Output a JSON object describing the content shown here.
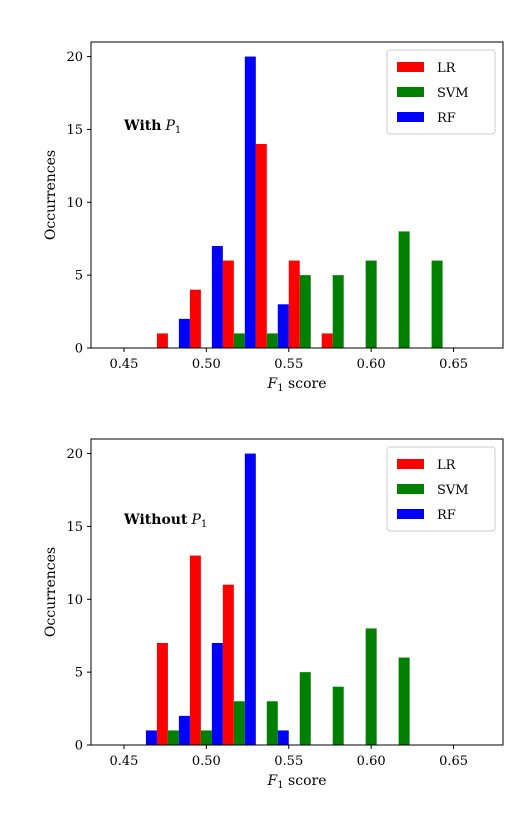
{
  "chart_data": [
    {
      "type": "bar",
      "annotation": "With",
      "annotation_math": "P",
      "annotation_sub": "1",
      "xlabel_math": "F",
      "xlabel_sub": "1",
      "xlabel_rest": "score",
      "ylabel": "Occurrences",
      "xlim": [
        0.43,
        0.68
      ],
      "ylim": [
        0,
        21
      ],
      "xticks": [
        {
          "value": 0.45,
          "label": "0.45"
        },
        {
          "value": 0.5,
          "label": "0.50"
        },
        {
          "value": 0.55,
          "label": "0.55"
        },
        {
          "value": 0.6,
          "label": "0.60"
        },
        {
          "value": 0.65,
          "label": "0.65"
        }
      ],
      "yticks": [
        {
          "value": 0,
          "label": "0"
        },
        {
          "value": 5,
          "label": "5"
        },
        {
          "value": 10,
          "label": "10"
        },
        {
          "value": 15,
          "label": "15"
        },
        {
          "value": 20,
          "label": "20"
        }
      ],
      "bin_width": 0.02,
      "bins": [
        0.45,
        0.47,
        0.49,
        0.51,
        0.53,
        0.55,
        0.57,
        0.59,
        0.61,
        0.63,
        0.65
      ],
      "legend_position": "top-right",
      "grid": false,
      "series": [
        {
          "name": "LR",
          "color": "#ff0000",
          "values": [
            0,
            1,
            4,
            6,
            14,
            6,
            1,
            0,
            0,
            0,
            0
          ]
        },
        {
          "name": "SVM",
          "color": "#008000",
          "values": [
            0,
            0,
            0,
            1,
            1,
            5,
            5,
            6,
            8,
            6,
            0
          ]
        },
        {
          "name": "RF",
          "color": "#0000ff",
          "values": [
            0,
            2,
            7,
            20,
            3,
            0,
            0,
            0,
            0,
            0,
            0
          ]
        }
      ]
    },
    {
      "type": "bar",
      "annotation": "Without",
      "annotation_math": "P",
      "annotation_sub": "1",
      "xlabel_math": "F",
      "xlabel_sub": "1",
      "xlabel_rest": "score",
      "ylabel": "Occurrences",
      "xlim": [
        0.43,
        0.68
      ],
      "ylim": [
        0,
        21
      ],
      "xticks": [
        {
          "value": 0.45,
          "label": "0.45"
        },
        {
          "value": 0.5,
          "label": "0.50"
        },
        {
          "value": 0.55,
          "label": "0.55"
        },
        {
          "value": 0.6,
          "label": "0.60"
        },
        {
          "value": 0.65,
          "label": "0.65"
        }
      ],
      "yticks": [
        {
          "value": 0,
          "label": "0"
        },
        {
          "value": 5,
          "label": "5"
        },
        {
          "value": 10,
          "label": "10"
        },
        {
          "value": 15,
          "label": "15"
        },
        {
          "value": 20,
          "label": "20"
        }
      ],
      "bin_width": 0.02,
      "bins": [
        0.45,
        0.47,
        0.49,
        0.51,
        0.53,
        0.55,
        0.57,
        0.59,
        0.61,
        0.63,
        0.65
      ],
      "legend_position": "top-right",
      "grid": false,
      "series": [
        {
          "name": "LR",
          "color": "#ff0000",
          "values": [
            0,
            7,
            13,
            11,
            0,
            0,
            0,
            0,
            0,
            0,
            0
          ]
        },
        {
          "name": "SVM",
          "color": "#008000",
          "values": [
            0,
            1,
            1,
            3,
            3,
            5,
            4,
            8,
            6,
            0,
            0
          ]
        },
        {
          "name": "RF",
          "color": "#0000ff",
          "values": [
            1,
            2,
            7,
            20,
            1,
            0,
            0,
            0,
            0,
            0,
            0
          ]
        }
      ]
    }
  ]
}
